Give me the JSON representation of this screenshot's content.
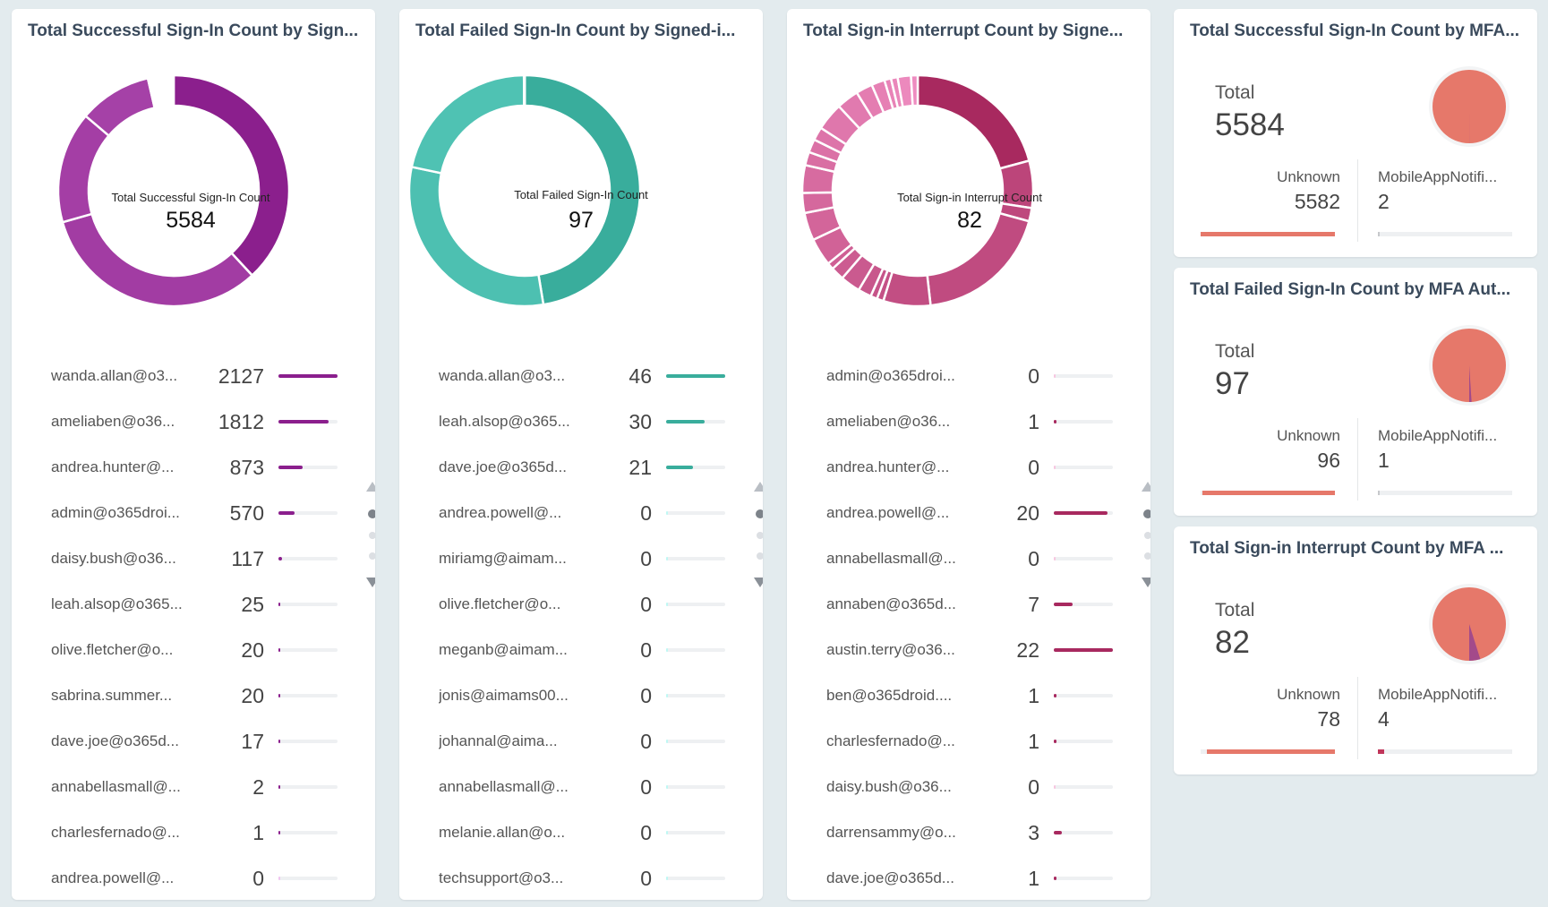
{
  "panels": [
    {
      "title": "Total Successful Sign-In Count by Sign...",
      "center_label": "Total Successful Sign-In Count",
      "total": "5584",
      "color_main": "#8b1f8d",
      "color_light": "#e08be0",
      "rows": [
        {
          "name": "wanda.allan@o3...",
          "value": "2127",
          "frac": 1.0
        },
        {
          "name": "ameliaben@o36...",
          "value": "1812",
          "frac": 0.852
        },
        {
          "name": "andrea.hunter@...",
          "value": "873",
          "frac": 0.41
        },
        {
          "name": "admin@o365droi...",
          "value": "570",
          "frac": 0.268
        },
        {
          "name": "daisy.bush@o36...",
          "value": "117",
          "frac": 0.055
        },
        {
          "name": "leah.alsop@o365...",
          "value": "25",
          "frac": 0.012
        },
        {
          "name": "olive.fletcher@o...",
          "value": "20",
          "frac": 0.009
        },
        {
          "name": "sabrina.summer...",
          "value": "20",
          "frac": 0.009
        },
        {
          "name": "dave.joe@o365d...",
          "value": "17",
          "frac": 0.008
        },
        {
          "name": "annabellasmall@...",
          "value": "2",
          "frac": 0.001
        },
        {
          "name": "charlesfernado@...",
          "value": "1",
          "frac": 0.0005
        },
        {
          "name": "andrea.powell@...",
          "value": "0",
          "frac": 0
        }
      ]
    },
    {
      "title": "Total Failed Sign-In Count by Signed-i...",
      "center_label": "Total Failed Sign-In Count",
      "total": "97",
      "color_main": "#39ad9c",
      "color_light": "#7ff0e8",
      "rows": [
        {
          "name": "wanda.allan@o3...",
          "value": "46",
          "frac": 1.0
        },
        {
          "name": "leah.alsop@o365...",
          "value": "30",
          "frac": 0.652
        },
        {
          "name": "dave.joe@o365d...",
          "value": "21",
          "frac": 0.457
        },
        {
          "name": "andrea.powell@...",
          "value": "0",
          "frac": 0
        },
        {
          "name": "miriamg@aimam...",
          "value": "0",
          "frac": 0
        },
        {
          "name": "olive.fletcher@o...",
          "value": "0",
          "frac": 0
        },
        {
          "name": "meganb@aimam...",
          "value": "0",
          "frac": 0
        },
        {
          "name": "jonis@aimams00...",
          "value": "0",
          "frac": 0
        },
        {
          "name": "johannal@aima...",
          "value": "0",
          "frac": 0
        },
        {
          "name": "annabellasmall@...",
          "value": "0",
          "frac": 0
        },
        {
          "name": "melanie.allan@o...",
          "value": "0",
          "frac": 0
        },
        {
          "name": "techsupport@o3...",
          "value": "0",
          "frac": 0
        }
      ]
    },
    {
      "title": "Total Sign-in Interrupt Count by Signe...",
      "center_label": "Total Sign-in Interrupt Count",
      "total": "82",
      "color_main": "#a8295f",
      "color_light": "#ee8cc0",
      "rows": [
        {
          "name": "admin@o365droi...",
          "value": "0",
          "frac": 0
        },
        {
          "name": "ameliaben@o36...",
          "value": "1",
          "frac": 0.045
        },
        {
          "name": "andrea.hunter@...",
          "value": "0",
          "frac": 0
        },
        {
          "name": "andrea.powell@...",
          "value": "20",
          "frac": 0.909
        },
        {
          "name": "annabellasmall@...",
          "value": "0",
          "frac": 0
        },
        {
          "name": "annaben@o365d...",
          "value": "7",
          "frac": 0.318
        },
        {
          "name": "austin.terry@o36...",
          "value": "22",
          "frac": 1.0
        },
        {
          "name": "ben@o365droid....",
          "value": "1",
          "frac": 0.045
        },
        {
          "name": "charlesfernado@...",
          "value": "1",
          "frac": 0.045
        },
        {
          "name": "daisy.bush@o36...",
          "value": "0",
          "frac": 0
        },
        {
          "name": "darrensammy@o...",
          "value": "3",
          "frac": 0.136
        },
        {
          "name": "dave.joe@o365d...",
          "value": "1",
          "frac": 0.045
        }
      ]
    }
  ],
  "mfa": [
    {
      "title": "Total Successful Sign-In Count by MFA...",
      "total_label": "Total",
      "total": "5584",
      "a_label": "Unknown",
      "a_value": "5582",
      "b_label": "MobileAppNotifi...",
      "b_value": "2",
      "b_frac": 0.0004
    },
    {
      "title": "Total Failed Sign-In Count by MFA Aut...",
      "total_label": "Total",
      "total": "97",
      "a_label": "Unknown",
      "a_value": "96",
      "b_label": "MobileAppNotifi...",
      "b_value": "1",
      "b_frac": 0.0103
    },
    {
      "title": "Total Sign-in Interrupt Count by MFA ...",
      "total_label": "Total",
      "total": "82",
      "a_label": "Unknown",
      "a_value": "78",
      "b_label": "MobileAppNotifi...",
      "b_value": "4",
      "b_frac": 0.0488
    }
  ],
  "colors": {
    "mfa_main": "#e6786a",
    "mfa_slice": "#a34a8a",
    "pager_active": "#7d838a"
  }
}
